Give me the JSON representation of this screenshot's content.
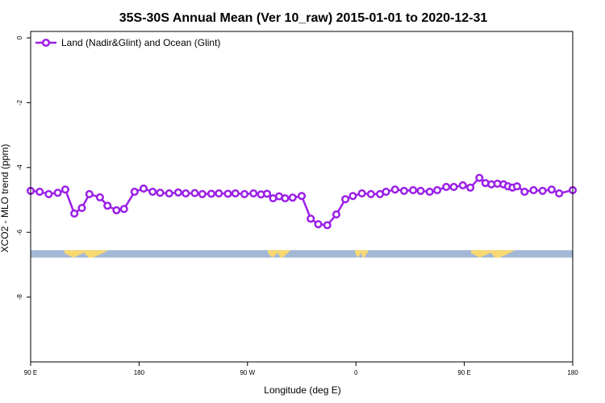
{
  "chart_data": {
    "type": "line",
    "title": "35S-30S Annual Mean (Ver 10_raw)   2015-01-01 to 2020-12-31",
    "xlabel": "Longitude (deg E)",
    "ylabel": "XCO2 - MLO trend (ppm)",
    "xlim": [
      90,
      450
    ],
    "ylim": [
      -10,
      0.2
    ],
    "x_ticks": [
      {
        "value": 90,
        "label": "90 E"
      },
      {
        "value": 162,
        "label": "180"
      },
      {
        "value": 234,
        "label": "90 W"
      },
      {
        "value": 306,
        "label": "0"
      },
      {
        "value": 378,
        "label": "90 E"
      },
      {
        "value": 450,
        "label": "180"
      }
    ],
    "y_ticks": [
      {
        "value": 0,
        "label": "0"
      },
      {
        "value": -2,
        "label": "-2"
      },
      {
        "value": -4,
        "label": "-4"
      },
      {
        "value": -6,
        "label": "-6"
      },
      {
        "value": -8,
        "label": "-8"
      }
    ],
    "legend": {
      "position": "top-left"
    },
    "colors": {
      "series": "#9b1fe8",
      "ocean": "#a3b8d6",
      "land": "#f8d870",
      "axis": "#000000"
    },
    "land_mask": {
      "y_top": -6.55,
      "y_bottom": -6.78,
      "land_ranges": [
        [
          112.5,
          141.5
        ],
        [
          247.5,
          262.5
        ],
        [
          305.5,
          314.5
        ],
        [
          382.5,
          411.5
        ]
      ]
    },
    "series": [
      {
        "name": "Land (Nadir&Glint) and Ocean (Glint)",
        "x": [
          90,
          96,
          102,
          108,
          113,
          119,
          124,
          129,
          136,
          141,
          147,
          152,
          159,
          165,
          171,
          176,
          182,
          188,
          193,
          199,
          204,
          210,
          215,
          221,
          226,
          232,
          238,
          243,
          247,
          251,
          255,
          259,
          264,
          270,
          276,
          281,
          287,
          293,
          299,
          304,
          310,
          316,
          322,
          326,
          332,
          338,
          344,
          349,
          355,
          360,
          366,
          371,
          377,
          382,
          388,
          392,
          396,
          400,
          404,
          407,
          410,
          413,
          418,
          424,
          430,
          436,
          441,
          450
        ],
        "y": [
          -4.72,
          -4.75,
          -4.82,
          -4.78,
          -4.68,
          -5.42,
          -5.25,
          -4.82,
          -4.92,
          -5.18,
          -5.32,
          -5.28,
          -4.75,
          -4.65,
          -4.75,
          -4.78,
          -4.8,
          -4.77,
          -4.8,
          -4.79,
          -4.82,
          -4.81,
          -4.8,
          -4.81,
          -4.8,
          -4.82,
          -4.8,
          -4.83,
          -4.81,
          -4.95,
          -4.89,
          -4.95,
          -4.93,
          -4.88,
          -5.58,
          -5.75,
          -5.78,
          -5.45,
          -4.98,
          -4.88,
          -4.8,
          -4.82,
          -4.82,
          -4.75,
          -4.68,
          -4.72,
          -4.7,
          -4.72,
          -4.75,
          -4.7,
          -4.6,
          -4.6,
          -4.55,
          -4.62,
          -4.32,
          -4.48,
          -4.52,
          -4.5,
          -4.52,
          -4.58,
          -4.62,
          -4.58,
          -4.75,
          -4.7,
          -4.72,
          -4.68,
          -4.8,
          -4.7
        ]
      }
    ]
  }
}
